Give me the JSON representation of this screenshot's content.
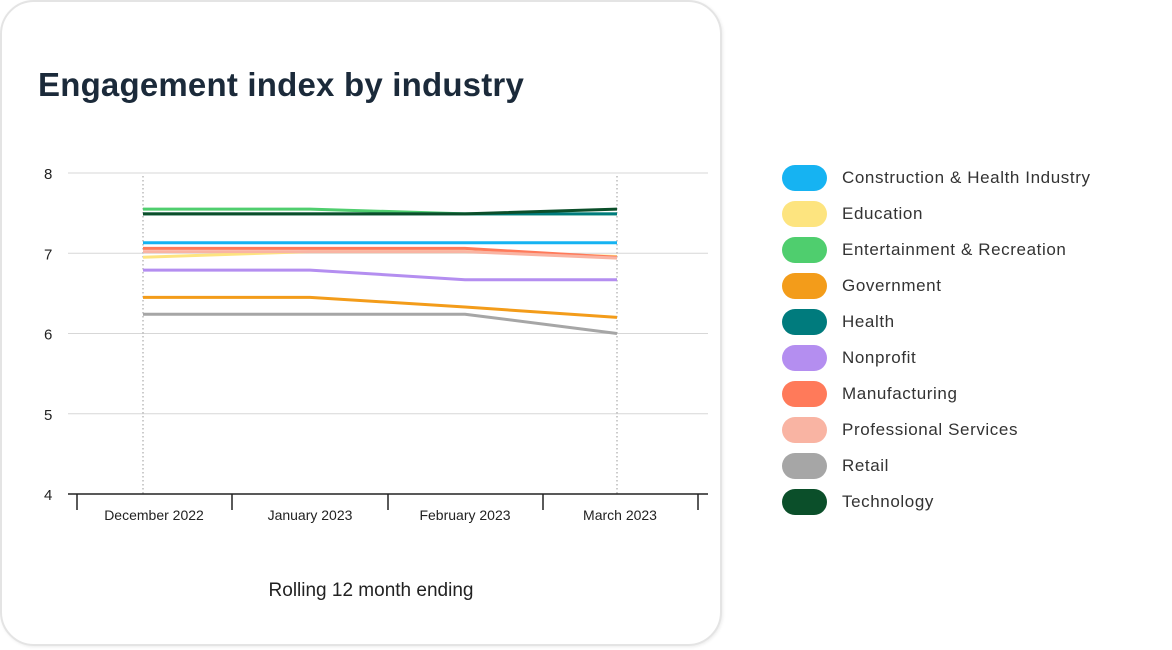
{
  "chart_data": {
    "type": "line",
    "title": "Engagement index by industry",
    "xlabel": "Rolling 12 month ending",
    "ylabel": "",
    "ylim": [
      4,
      8
    ],
    "yticks": [
      "4",
      "5",
      "6",
      "7",
      "8"
    ],
    "grid": true,
    "legend_position": "right",
    "categories": [
      "December 2022",
      "January 2023",
      "February 2023",
      "March 2023"
    ],
    "series": [
      {
        "name": "Construction & Health Industry",
        "color": "#16b3f2",
        "values": [
          7.13,
          7.13,
          7.13,
          7.13
        ]
      },
      {
        "name": "Education",
        "color": "#fde47f",
        "values": [
          6.95,
          7.02,
          7.02,
          6.96
        ]
      },
      {
        "name": "Entertainment & Recreation",
        "color": "#4fce6e",
        "values": [
          7.55,
          7.55,
          7.49,
          7.49
        ]
      },
      {
        "name": "Government",
        "color": "#f39c1a",
        "values": [
          6.45,
          6.45,
          6.33,
          6.2
        ]
      },
      {
        "name": "Health",
        "color": "#007b7d",
        "values": [
          7.49,
          7.49,
          7.49,
          7.49
        ]
      },
      {
        "name": "Nonprofit",
        "color": "#b48ef0",
        "values": [
          6.79,
          6.79,
          6.67,
          6.67
        ]
      },
      {
        "name": "Manufacturing",
        "color": "#ff7a5a",
        "values": [
          7.06,
          7.06,
          7.06,
          6.95
        ]
      },
      {
        "name": "Professional Services",
        "color": "#f9b4a3",
        "values": [
          7.02,
          7.02,
          7.02,
          6.94
        ]
      },
      {
        "name": "Retail",
        "color": "#a6a6a6",
        "values": [
          6.24,
          6.24,
          6.24,
          6.0
        ]
      },
      {
        "name": "Technology",
        "color": "#0b4f2a",
        "values": [
          7.49,
          7.49,
          7.49,
          7.55
        ]
      }
    ]
  }
}
